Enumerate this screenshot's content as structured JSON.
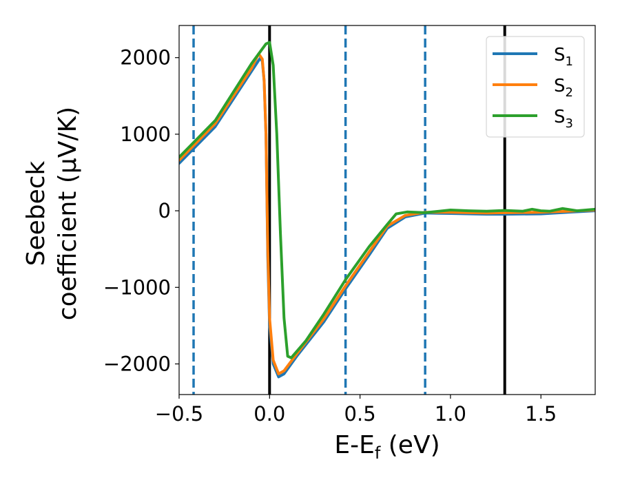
{
  "chart_data": {
    "type": "line",
    "xlabel_main": "E-E",
    "xlabel_sub": "f",
    "xlabel_unit": " (eV)",
    "ylabel_line1": "Seebeck",
    "ylabel_line2": "coefficient  (μV/K)",
    "xlim": [
      -0.5,
      1.8
    ],
    "ylim": [
      -2400,
      2420
    ],
    "x_ticks": [
      {
        "value": -0.5,
        "label": "−0.5"
      },
      {
        "value": 0.0,
        "label": "0.0"
      },
      {
        "value": 0.5,
        "label": "0.5"
      },
      {
        "value": 1.0,
        "label": "1.0"
      },
      {
        "value": 1.5,
        "label": "1.5"
      }
    ],
    "y_ticks": [
      {
        "value": 2000,
        "label": "2000"
      },
      {
        "value": 1000,
        "label": "1000"
      },
      {
        "value": 0,
        "label": "0"
      },
      {
        "value": -1000,
        "label": "−1000"
      },
      {
        "value": -2000,
        "label": "−2000"
      }
    ],
    "vlines": [
      {
        "x": -0.42,
        "style": "dashed",
        "color": "#1f77b4"
      },
      {
        "x": 0.0,
        "style": "solid",
        "color": "#000000"
      },
      {
        "x": 0.42,
        "style": "dashed",
        "color": "#1f77b4"
      },
      {
        "x": 0.86,
        "style": "dashed",
        "color": "#1f77b4"
      },
      {
        "x": 1.3,
        "style": "solid",
        "color": "#000000"
      }
    ],
    "legend_position": "top-right",
    "series": [
      {
        "name": "S",
        "sub": "1",
        "color": "#1f77b4",
        "points": [
          [
            -0.5,
            620
          ],
          [
            -0.3,
            1100
          ],
          [
            -0.1,
            1820
          ],
          [
            -0.05,
            2000
          ],
          [
            -0.04,
            1950
          ],
          [
            -0.03,
            1700
          ],
          [
            -0.02,
            1000
          ],
          [
            -0.01,
            -600
          ],
          [
            0.0,
            -1500
          ],
          [
            0.02,
            -2000
          ],
          [
            0.05,
            -2170
          ],
          [
            0.08,
            -2130
          ],
          [
            0.15,
            -1900
          ],
          [
            0.3,
            -1450
          ],
          [
            0.42,
            -1020
          ],
          [
            0.55,
            -580
          ],
          [
            0.65,
            -230
          ],
          [
            0.75,
            -80
          ],
          [
            0.86,
            -30
          ],
          [
            1.0,
            -35
          ],
          [
            1.2,
            -45
          ],
          [
            1.3,
            -45
          ],
          [
            1.5,
            -40
          ],
          [
            1.65,
            -20
          ],
          [
            1.8,
            0
          ]
        ]
      },
      {
        "name": "S",
        "sub": "2",
        "color": "#ff7f0e",
        "points": [
          [
            -0.5,
            660
          ],
          [
            -0.3,
            1140
          ],
          [
            -0.1,
            1860
          ],
          [
            -0.06,
            2050
          ],
          [
            -0.04,
            1980
          ],
          [
            -0.03,
            1700
          ],
          [
            -0.02,
            1000
          ],
          [
            -0.01,
            -500
          ],
          [
            0.0,
            -1400
          ],
          [
            0.02,
            -1950
          ],
          [
            0.05,
            -2130
          ],
          [
            0.08,
            -2090
          ],
          [
            0.15,
            -1870
          ],
          [
            0.3,
            -1410
          ],
          [
            0.42,
            -980
          ],
          [
            0.55,
            -540
          ],
          [
            0.65,
            -200
          ],
          [
            0.75,
            -60
          ],
          [
            0.86,
            -20
          ],
          [
            1.0,
            -20
          ],
          [
            1.2,
            -30
          ],
          [
            1.3,
            -25
          ],
          [
            1.5,
            -20
          ],
          [
            1.65,
            -5
          ],
          [
            1.8,
            10
          ]
        ]
      },
      {
        "name": "S",
        "sub": "3",
        "color": "#2ca02c",
        "points": [
          [
            -0.5,
            700
          ],
          [
            -0.3,
            1180
          ],
          [
            -0.1,
            1920
          ],
          [
            -0.02,
            2180
          ],
          [
            0.0,
            2200
          ],
          [
            0.02,
            1900
          ],
          [
            0.04,
            1000
          ],
          [
            0.06,
            -300
          ],
          [
            0.08,
            -1400
          ],
          [
            0.1,
            -1900
          ],
          [
            0.12,
            -1920
          ],
          [
            0.2,
            -1700
          ],
          [
            0.3,
            -1350
          ],
          [
            0.42,
            -900
          ],
          [
            0.55,
            -470
          ],
          [
            0.65,
            -180
          ],
          [
            0.7,
            -40
          ],
          [
            0.76,
            -15
          ],
          [
            0.86,
            -25
          ],
          [
            1.0,
            10
          ],
          [
            1.1,
            0
          ],
          [
            1.2,
            -5
          ],
          [
            1.3,
            5
          ],
          [
            1.4,
            -5
          ],
          [
            1.45,
            20
          ],
          [
            1.5,
            0
          ],
          [
            1.55,
            -5
          ],
          [
            1.62,
            30
          ],
          [
            1.7,
            0
          ],
          [
            1.8,
            20
          ]
        ]
      }
    ]
  }
}
